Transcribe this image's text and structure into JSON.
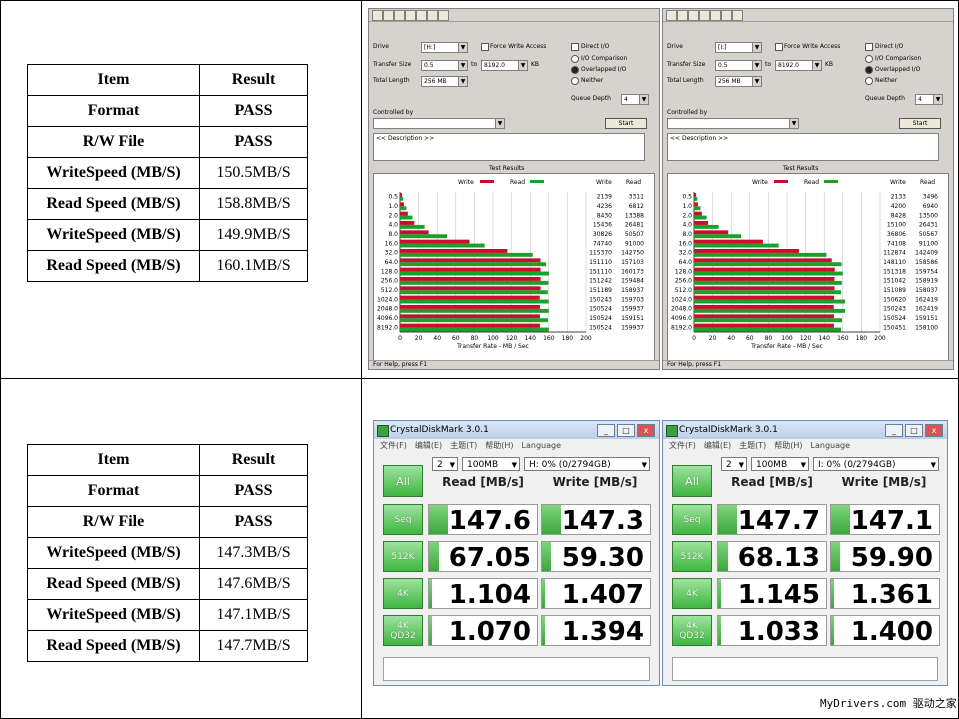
{
  "table_top": {
    "headers": [
      "Item",
      "Result"
    ],
    "rows": [
      [
        "Format",
        "PASS"
      ],
      [
        "R/W File",
        "PASS"
      ],
      [
        "WriteSpeed (MB/S)",
        "150.5MB/S"
      ],
      [
        "Read  Speed (MB/S)",
        "158.8MB/S"
      ],
      [
        "WriteSpeed (MB/S)",
        "149.9MB/S"
      ],
      [
        "Read  Speed (MB/S)",
        "160.1MB/S"
      ]
    ]
  },
  "table_bottom": {
    "headers": [
      "Item",
      "Result"
    ],
    "rows": [
      [
        "Format",
        "PASS"
      ],
      [
        "R/W File",
        "PASS"
      ],
      [
        "WriteSpeed (MB/S)",
        "147.3MB/S"
      ],
      [
        "Read  Speed (MB/S)",
        "147.6MB/S"
      ],
      [
        "WriteSpeed (MB/S)",
        "147.1MB/S"
      ],
      [
        "Read  Speed (MB/S)",
        "147.7MB/S"
      ]
    ]
  },
  "iometer": [
    {
      "drive_label": "Drive",
      "drive_value": "[H:]",
      "force_write": "Force Write Access",
      "direct_io": "Direct I/O",
      "transfer_label": "Transfer Size",
      "transfer_from": "0.5",
      "transfer_to_label": "to",
      "transfer_to": "8192.0",
      "kb": "KB",
      "total_length_label": "Total Length",
      "total_length": "256 MB",
      "io_comparison": "I/O Comparison",
      "overlapped_io": "Overlapped I/O",
      "neither": "Neither",
      "queue_depth_label": "Queue Depth",
      "queue_depth": "4",
      "controlled_by": "Controlled by",
      "start": "Start",
      "description": "<< Description >>",
      "results_title": "Test Results",
      "legend_write": "Write",
      "legend_read": "Read",
      "col_write": "Write",
      "col_read": "Read",
      "xlabel": "Transfer Rate - MB / Sec",
      "status": "For Help, press F1",
      "xticks": [
        "0",
        "20",
        "40",
        "60",
        "80",
        "100",
        "120",
        "140",
        "160",
        "180",
        "200"
      ]
    },
    {
      "drive_label": "Drive",
      "drive_value": "[I:]",
      "force_write": "Force Write Access",
      "direct_io": "Direct I/O",
      "transfer_label": "Transfer Size",
      "transfer_from": "0.5",
      "transfer_to_label": "to",
      "transfer_to": "8192.0",
      "kb": "KB",
      "total_length_label": "Total Length",
      "total_length": "256 MB",
      "io_comparison": "I/O Comparison",
      "overlapped_io": "Overlapped I/O",
      "neither": "Neither",
      "queue_depth_label": "Queue Depth",
      "queue_depth": "4",
      "controlled_by": "Controlled by",
      "start": "Start",
      "description": "<< Description >>",
      "results_title": "Test Results",
      "legend_write": "Write",
      "legend_read": "Read",
      "col_write": "Write",
      "col_read": "Read",
      "xlabel": "Transfer Rate - MB / Sec",
      "status": "For Help, press F1",
      "xticks": [
        "0",
        "20",
        "40",
        "60",
        "80",
        "100",
        "120",
        "140",
        "160",
        "180",
        "200"
      ]
    }
  ],
  "chart_data": [
    {
      "type": "bar",
      "title": "Test Results",
      "xlabel": "Transfer Rate - MB / Sec",
      "xlim": [
        0,
        200
      ],
      "categories": [
        "0.5",
        "1.0",
        "2.0",
        "4.0",
        "8.0",
        "16.0",
        "32.0",
        "64.0",
        "128.0",
        "256.0",
        "512.0",
        "1024.0",
        "2048.0",
        "4096.0",
        "8192.0"
      ],
      "series": [
        {
          "name": "Write",
          "values": [
            2.139,
            4.236,
            8.43,
            15.436,
            30.825,
            74.74,
            115.37,
            151.11,
            151.11,
            151.242,
            151.189,
            150.243,
            150.524,
            150.524,
            150.524
          ]
        },
        {
          "name": "Read",
          "values": [
            3.311,
            6.812,
            13.388,
            26.481,
            50.507,
            91.0,
            142.75,
            157.1,
            160.17,
            159.484,
            158.93,
            159.703,
            159.937,
            159.151,
            159.937
          ]
        }
      ],
      "row_values_write": [
        "2139",
        "4236",
        "8430",
        "15436",
        "30826",
        "74740",
        "115370",
        "151110",
        "151110",
        "151242",
        "151189",
        "150243",
        "150524",
        "150524",
        "150524"
      ],
      "row_values_read": [
        "3311",
        "6812",
        "13388",
        "26481",
        "50507",
        "91000",
        "142750",
        "157103",
        "160173",
        "159484",
        "158937",
        "159703",
        "159937",
        "159151",
        "159937"
      ]
    },
    {
      "type": "bar",
      "title": "Test Results",
      "xlabel": "Transfer Rate - MB / Sec",
      "xlim": [
        0,
        200
      ],
      "categories": [
        "0.5",
        "1.0",
        "2.0",
        "4.0",
        "8.0",
        "16.0",
        "32.0",
        "64.0",
        "128.0",
        "256.0",
        "512.0",
        "1024.0",
        "2048.0",
        "4096.0",
        "8192.0"
      ],
      "series": [
        {
          "name": "Write",
          "values": [
            2.133,
            4.2,
            8.428,
            15.1,
            36.806,
            74.108,
            112.874,
            148.11,
            151.318,
            151.042,
            151.089,
            150.62,
            150.243,
            150.524,
            150.451
          ]
        },
        {
          "name": "Read",
          "values": [
            3.496,
            6.94,
            13.5,
            26.431,
            50.567,
            91.1,
            142.409,
            158.586,
            159.754,
            158.919,
            158.037,
            162.419,
            162.419,
            159.151,
            158.1
          ]
        }
      ],
      "row_values_write": [
        "2133",
        "4200",
        "8428",
        "15100",
        "36806",
        "74108",
        "112874",
        "148110",
        "151318",
        "151042",
        "151089",
        "150620",
        "150243",
        "150524",
        "150451"
      ],
      "row_values_read": [
        "3496",
        "6940",
        "13500",
        "26431",
        "50567",
        "91100",
        "142409",
        "158586",
        "159754",
        "158919",
        "158037",
        "162419",
        "162419",
        "159151",
        "158100"
      ]
    }
  ],
  "cdm": [
    {
      "title": "CrystalDiskMark 3.0.1",
      "menu": [
        "文件(F)",
        "编辑(E)",
        "主题(T)",
        "帮助(H)",
        "Language"
      ],
      "count": "2",
      "size": "100MB",
      "drive": "H: 0% (0/2794GB)",
      "all": "All",
      "read_hdr": "Read [MB/s]",
      "write_hdr": "Write [MB/s]",
      "rows": [
        {
          "label": "Seq",
          "read": "147.6",
          "write": "147.3"
        },
        {
          "label": "512K",
          "read": "67.05",
          "write": "59.30"
        },
        {
          "label": "4K",
          "read": "1.104",
          "write": "1.407"
        },
        {
          "label": "4K\nQD32",
          "read": "1.070",
          "write": "1.394"
        }
      ],
      "fills_read": [
        0.18,
        0.09,
        0.03,
        0.03
      ],
      "fills_write": [
        0.18,
        0.08,
        0.03,
        0.03
      ]
    },
    {
      "title": "CrystalDiskMark 3.0.1",
      "menu": [
        "文件(F)",
        "编辑(E)",
        "主题(T)",
        "帮助(H)",
        "Language"
      ],
      "count": "2",
      "size": "100MB",
      "drive": "I: 0% (0/2794GB)",
      "all": "All",
      "read_hdr": "Read [MB/s]",
      "write_hdr": "Write [MB/s]",
      "rows": [
        {
          "label": "Seq",
          "read": "147.7",
          "write": "147.1"
        },
        {
          "label": "512K",
          "read": "68.13",
          "write": "59.90"
        },
        {
          "label": "4K",
          "read": "1.145",
          "write": "1.361"
        },
        {
          "label": "4K\nQD32",
          "read": "1.033",
          "write": "1.400"
        }
      ],
      "fills_read": [
        0.18,
        0.09,
        0.03,
        0.03
      ],
      "fills_write": [
        0.18,
        0.08,
        0.03,
        0.03
      ]
    }
  ],
  "watermark": "MyDrivers.com 驱动之家",
  "colors": {
    "write_bar": "#c8102e",
    "read_bar": "#1e9e2a",
    "cdm_green": "#3fb63f"
  }
}
